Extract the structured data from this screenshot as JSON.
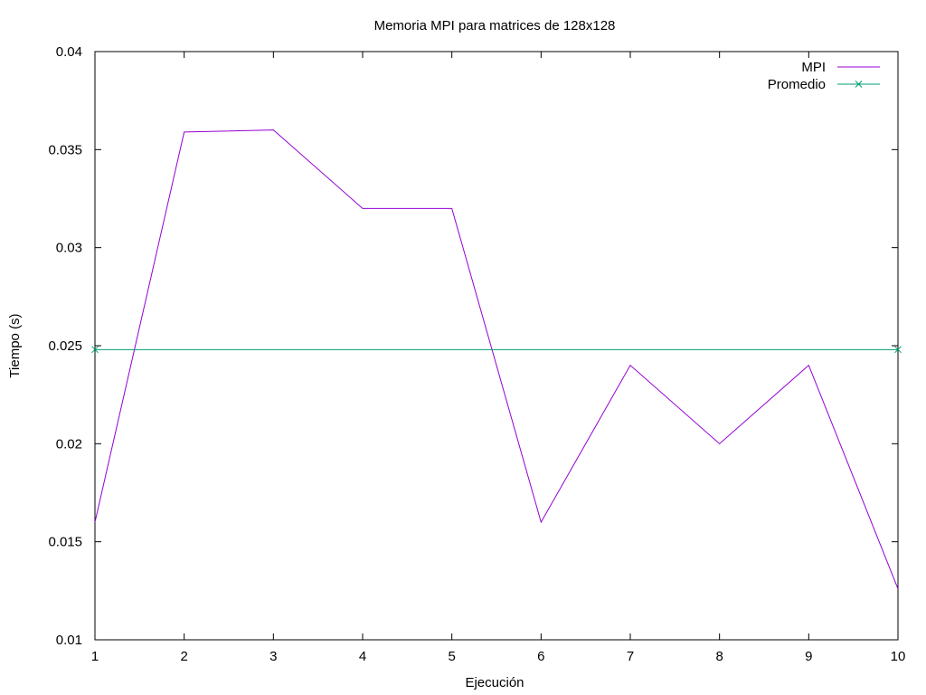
{
  "chart_data": {
    "type": "line",
    "title": "Memoria MPI para matrices de 128x128",
    "xlabel": "Ejecución",
    "ylabel": "Tiempo (s)",
    "xlim": [
      1,
      10
    ],
    "ylim": [
      0.01,
      0.04
    ],
    "x_ticks": [
      "1",
      "2",
      "3",
      "4",
      "5",
      "6",
      "7",
      "8",
      "9",
      "10"
    ],
    "y_ticks": [
      "0.01",
      "0.015",
      "0.02",
      "0.025",
      "0.03",
      "0.035",
      "0.04"
    ],
    "grid": false,
    "legend_position": "top-right",
    "x": [
      1,
      2,
      3,
      4,
      5,
      6,
      7,
      8,
      9,
      10
    ],
    "series": [
      {
        "name": "MPI",
        "color": "#9400d3",
        "marker": "none",
        "values": [
          0.016,
          0.0359,
          0.036,
          0.032,
          0.032,
          0.016,
          0.024,
          0.02,
          0.024,
          0.0126
        ]
      },
      {
        "name": "Promedio",
        "color": "#009e73",
        "marker": "x",
        "marker_at": [
          1,
          10
        ],
        "values": [
          0.0248,
          0.0248,
          0.0248,
          0.0248,
          0.0248,
          0.0248,
          0.0248,
          0.0248,
          0.0248,
          0.0248
        ]
      }
    ]
  }
}
